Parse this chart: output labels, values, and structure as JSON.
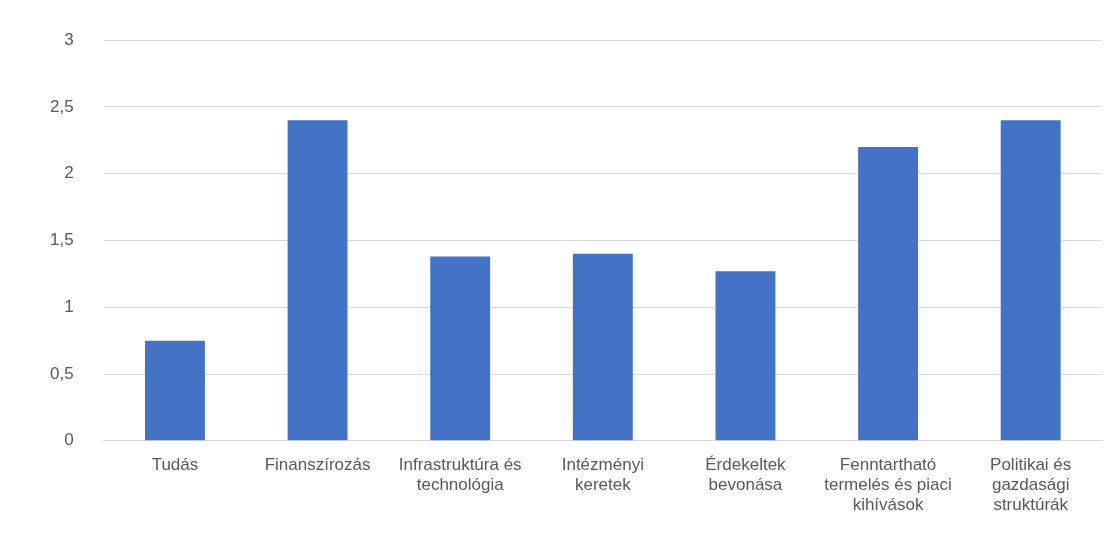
{
  "chart_data": {
    "type": "bar",
    "categories": [
      "Tudás",
      "Finanszírozás",
      "Infrastruktúra és technológia",
      "Intézményi keretek",
      "Érdekeltek bevonása",
      "Fenntartható termelés és piaci kihívások",
      "Politikai és gazdasági struktúrák"
    ],
    "values": [
      0.75,
      2.4,
      1.38,
      1.4,
      1.27,
      2.2,
      2.4
    ],
    "color": "#4472c4",
    "ylim": [
      0,
      3
    ],
    "yticks": [
      0,
      {
        "value": 0.5,
        "label": "0,5"
      },
      1,
      {
        "value": 1.5,
        "label": "1,5"
      },
      2,
      {
        "value": 2.5,
        "label": "2,5"
      },
      3
    ],
    "grid": "y",
    "legend": false
  }
}
